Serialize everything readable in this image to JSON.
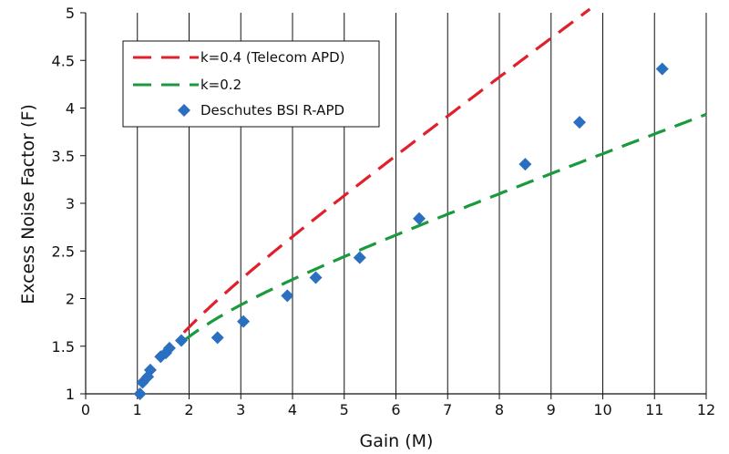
{
  "chart_data": {
    "type": "scatter",
    "title": "",
    "xlabel": "Gain (M)",
    "ylabel": "Excess Noise Factor (F)",
    "xlim": [
      0,
      12
    ],
    "ylim": [
      1,
      5
    ],
    "xticks": [
      0,
      1,
      2,
      3,
      4,
      5,
      6,
      7,
      8,
      9,
      10,
      11,
      12
    ],
    "yticks": [
      1,
      1.5,
      2,
      2.5,
      3,
      3.5,
      4,
      4.5,
      5
    ],
    "ytick_labels": [
      "1",
      "1.5",
      "2",
      "2.5",
      "3",
      "3.5",
      "4",
      "4.5",
      "5"
    ],
    "grid": {
      "x": true,
      "y": false
    },
    "legend_position": "top-left",
    "series": [
      {
        "name": "k=0.4 (Telecom APD)",
        "kind": "dashed-line",
        "color": "#e0202a",
        "k": 0.4,
        "x_range": [
          1.9,
          9.75
        ]
      },
      {
        "name": "k=0.2",
        "kind": "dashed-line",
        "color": "#1a9a3c",
        "k": 0.2,
        "x_range": [
          1.9,
          12
        ]
      },
      {
        "name": "Deschutes BSI R-APD",
        "kind": "markers",
        "color": "#2a6fc0",
        "marker": "diamond",
        "x": [
          1.05,
          1.1,
          1.2,
          1.25,
          1.45,
          1.55,
          1.62,
          1.85,
          2.55,
          3.05,
          3.9,
          4.45,
          5.3,
          6.45,
          8.5,
          9.55,
          11.15
        ],
        "y": [
          1.0,
          1.12,
          1.18,
          1.25,
          1.39,
          1.43,
          1.48,
          1.56,
          1.59,
          1.76,
          2.03,
          2.22,
          2.43,
          2.84,
          3.41,
          3.85,
          4.41
        ]
      }
    ]
  }
}
